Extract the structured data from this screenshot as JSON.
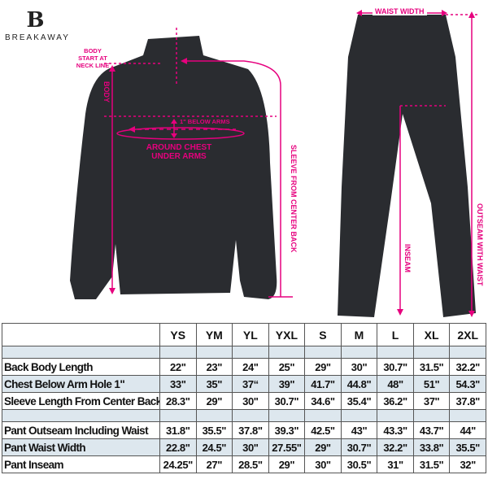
{
  "brand": {
    "logo_letter": "B",
    "name": "BREAKAWAY"
  },
  "annotations": {
    "body_start": [
      "BODY",
      "START AT",
      "NECK LINE"
    ],
    "body": "BODY",
    "below_arms": "1\" BELOW ARMS",
    "around_chest": [
      "AROUND CHEST",
      "UNDER ARMS"
    ],
    "sleeve": "SLEEVE FROM CENTER BACK",
    "waist_width": "WAIST WIDTH",
    "inseam": "INSEAM",
    "outseam": "OUTSEAM WITH WAIST"
  },
  "colors": {
    "accent": "#e6007e",
    "garment": "#2a2c30",
    "table_shade": "#dde7ee"
  },
  "table": {
    "sizes": [
      "YS",
      "YM",
      "YL",
      "YXL",
      "S",
      "M",
      "L",
      "XL",
      "2XL"
    ],
    "jacket_rows": [
      {
        "label": "Back Body Length",
        "values": [
          "22\"",
          "23\"",
          "24\"",
          "25\"",
          "29\"",
          "30\"",
          "30.7\"",
          "31.5\"",
          "32.2\""
        ]
      },
      {
        "label": "Chest Below Arm Hole 1\"",
        "values": [
          "33\"",
          "35\"",
          "37“",
          "39\"",
          "41.7\"",
          "44.8\"",
          "48\"",
          "51\"",
          "54.3\""
        ]
      },
      {
        "label": "Sleeve Length From Center Back",
        "values": [
          "28.3\"",
          "29\"",
          "30\"",
          "30.7\"",
          "34.6\"",
          "35.4\"",
          "36.2\"",
          "37\"",
          "37.8\""
        ]
      }
    ],
    "pant_rows": [
      {
        "label": "Pant Outseam Including Waist",
        "values": [
          "31.8\"",
          "35.5\"",
          "37.8\"",
          "39.3\"",
          "42.5\"",
          "43\"",
          "43.3\"",
          "43.7\"",
          "44\""
        ]
      },
      {
        "label": "Pant Waist Width",
        "values": [
          "22.8\"",
          "24.5\"",
          "30\"",
          "27.55\"",
          "29\"",
          "30.7\"",
          "32.2\"",
          "33.8\"",
          "35.5\""
        ]
      },
      {
        "label": "Pant Inseam",
        "values": [
          "24.25\"",
          "27\"",
          "28.5\"",
          "29\"",
          "30\"",
          "30.5\"",
          "31\"",
          "31.5\"",
          "32\""
        ]
      }
    ]
  }
}
